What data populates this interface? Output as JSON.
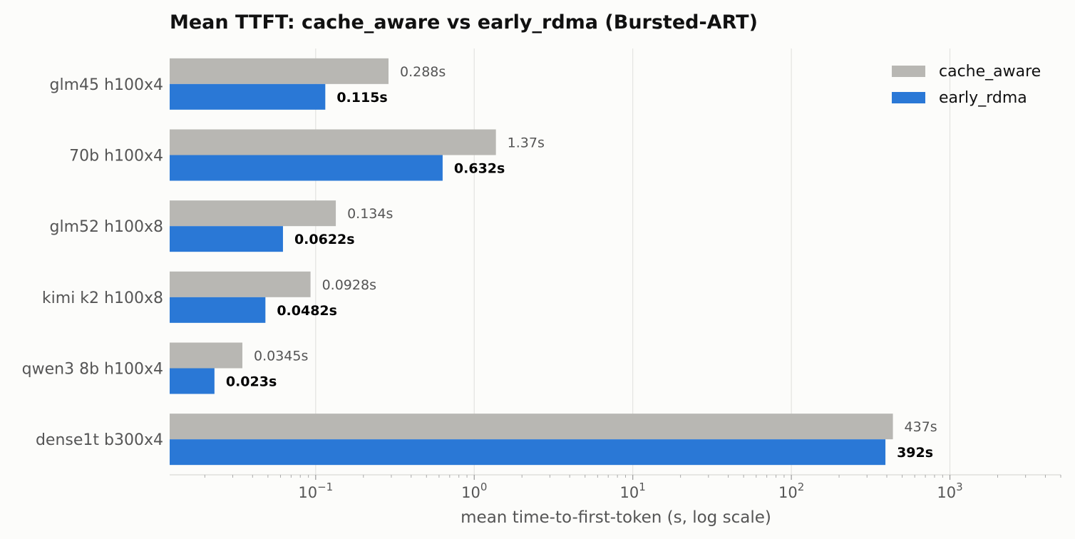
{
  "chart_data": {
    "type": "bar",
    "orientation": "horizontal",
    "title": "Mean TTFT: cache_aware vs early_rdma (Bursted-ART)",
    "xlabel": "mean time-to-first-token (s, log scale)",
    "ylabel": "",
    "x_scale": "log",
    "xlim": [
      0.012,
      5000
    ],
    "x_ticks": [
      {
        "value": 0.1,
        "base": "10",
        "exp": "−1"
      },
      {
        "value": 1,
        "base": "10",
        "exp": "0"
      },
      {
        "value": 10,
        "base": "10",
        "exp": "1"
      },
      {
        "value": 100,
        "base": "10",
        "exp": "2"
      },
      {
        "value": 1000,
        "base": "10",
        "exp": "3"
      }
    ],
    "grid": "vertical major",
    "legend_position": "top-right",
    "categories": [
      "glm45 h100x4",
      "70b h100x4",
      "glm52 h100x8",
      "kimi k2 h100x8",
      "qwen3 8b h100x4",
      "dense1t b300x4"
    ],
    "series": [
      {
        "name": "cache_aware",
        "color": "#b8b7b3",
        "values": [
          0.288,
          1.37,
          0.134,
          0.0928,
          0.0345,
          437
        ],
        "labels": [
          "0.288s",
          "1.37s",
          "0.134s",
          "0.0928s",
          "0.0345s",
          "437s"
        ]
      },
      {
        "name": "early_rdma",
        "color": "#2a78d6",
        "values": [
          0.115,
          0.632,
          0.0622,
          0.0482,
          0.023,
          392
        ],
        "labels": [
          "0.115s",
          "0.632s",
          "0.0622s",
          "0.0482s",
          "0.023s",
          "392s"
        ]
      }
    ]
  }
}
